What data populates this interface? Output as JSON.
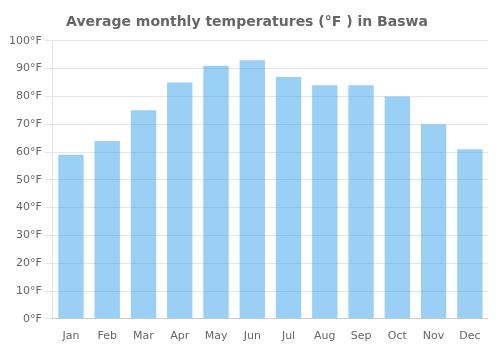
{
  "chart_data": {
    "type": "bar",
    "title": "Average monthly temperatures (°F ) in Baswa",
    "categories": [
      "Jan",
      "Feb",
      "Mar",
      "Apr",
      "May",
      "Jun",
      "Jul",
      "Aug",
      "Sep",
      "Oct",
      "Nov",
      "Dec"
    ],
    "values": [
      59,
      64,
      75,
      85,
      91,
      93,
      87,
      84,
      84,
      80,
      70,
      61
    ],
    "ylim": [
      0,
      100
    ],
    "yticks": [
      {
        "value": 0,
        "label": "0°F"
      },
      {
        "value": 10,
        "label": "10°F"
      },
      {
        "value": 20,
        "label": "20°F"
      },
      {
        "value": 30,
        "label": "30°F"
      },
      {
        "value": 40,
        "label": "40°F"
      },
      {
        "value": 50,
        "label": "50°F"
      },
      {
        "value": 60,
        "label": "60°F"
      },
      {
        "value": 70,
        "label": "70°F"
      },
      {
        "value": 80,
        "label": "80°F"
      },
      {
        "value": 90,
        "label": "90°F"
      },
      {
        "value": 100,
        "label": "100°F"
      }
    ],
    "grid": true
  }
}
